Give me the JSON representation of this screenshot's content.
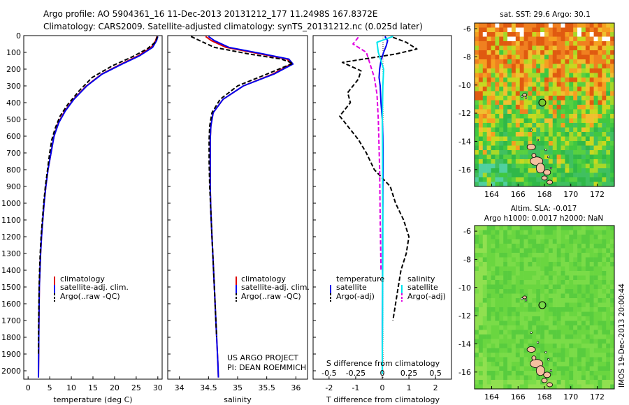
{
  "header": {
    "line1": "Argo profile: AO 5904361_16 11-Dec-2013 20131212_177 11.2498S 167.8372E",
    "line2": "Climatology: CARS2009. Satellite-adjusted climatology: synTS_20131212.nc (0.025d later)"
  },
  "colors": {
    "red": "#dd0000",
    "blue": "#0000ee",
    "black": "#000000",
    "cyan": "#00e5ee",
    "magenta": "#e000e0",
    "island": "#f5c0a0"
  },
  "chart_data": [
    {
      "id": "temperature",
      "type": "line",
      "xlabel": "temperature (deg C)",
      "ylabel": "",
      "xlim": [
        -1,
        31
      ],
      "ylim": [
        2050,
        0
      ],
      "y_reversed": true,
      "xticks": [
        "0",
        "5",
        "10",
        "15",
        "20",
        "25",
        "30"
      ],
      "yticks": [
        "0",
        "100",
        "200",
        "300",
        "400",
        "500",
        "600",
        "700",
        "800",
        "900",
        "1000",
        "1100",
        "1200",
        "1300",
        "1400",
        "1500",
        "1600",
        "1700",
        "1800",
        "1900",
        "2000"
      ],
      "legend": [
        "climatology",
        "satellite-adj. clim.",
        "Argo(..raw -QC)"
      ],
      "series": [
        {
          "name": "climatology",
          "color": "red",
          "dash": false,
          "x": [
            29.8,
            29.5,
            28.5,
            25.5,
            21.5,
            17.0,
            13.5,
            10.5,
            8.5,
            7.0,
            6.0,
            5.3,
            4.6,
            4.1,
            3.7,
            3.4,
            3.1,
            2.9,
            2.75,
            2.6,
            2.5,
            2.45,
            2.4
          ],
          "y": [
            5,
            30,
            70,
            120,
            170,
            230,
            300,
            380,
            450,
            520,
            600,
            700,
            800,
            900,
            1000,
            1100,
            1200,
            1300,
            1400,
            1500,
            1700,
            1900,
            2040
          ]
        },
        {
          "name": "satellite-adj. clim.",
          "color": "blue",
          "dash": false,
          "x": [
            30.0,
            29.7,
            28.8,
            25.8,
            21.7,
            17.1,
            13.6,
            10.6,
            8.6,
            7.1,
            6.0,
            5.3,
            4.6,
            4.1,
            3.7,
            3.4,
            3.1,
            2.9,
            2.75,
            2.6,
            2.5,
            2.45,
            2.4
          ],
          "y": [
            5,
            30,
            70,
            120,
            170,
            230,
            300,
            380,
            450,
            520,
            600,
            700,
            800,
            900,
            1000,
            1100,
            1200,
            1300,
            1400,
            1500,
            1700,
            1900,
            2040
          ]
        },
        {
          "name": "Argo(..raw -QC)",
          "color": "black",
          "dash": true,
          "x": [
            29.9,
            29.4,
            27.5,
            23.8,
            19.5,
            14.8,
            11.8,
            9.2,
            7.4,
            6.3,
            5.5,
            5.0,
            4.5,
            4.0,
            3.6,
            3.3,
            3.0,
            2.8,
            2.65,
            2.55,
            2.45,
            2.4
          ],
          "y": [
            5,
            40,
            80,
            130,
            180,
            250,
            330,
            410,
            480,
            550,
            620,
            700,
            800,
            900,
            1000,
            1100,
            1200,
            1300,
            1400,
            1500,
            1700,
            1900
          ]
        }
      ]
    },
    {
      "id": "salinity",
      "type": "line",
      "xlabel": "salinity",
      "ylabel": "",
      "xlim": [
        33.8,
        36.2
      ],
      "ylim": [
        2050,
        0
      ],
      "y_reversed": true,
      "xticks": [
        "34",
        "34.5",
        "35",
        "35.5",
        "36"
      ],
      "legend": [
        "climatology",
        "satellite-adj. clim.",
        "Argo(..raw -QC)"
      ],
      "annotation": [
        "US ARGO PROJECT",
        "PI: DEAN ROEMMICH"
      ],
      "series": [
        {
          "name": "climatology",
          "color": "red",
          "dash": false,
          "x": [
            34.45,
            34.55,
            34.8,
            35.4,
            35.85,
            35.92,
            35.6,
            35.1,
            34.75,
            34.58,
            34.54,
            34.53,
            34.53,
            34.53,
            34.54,
            34.56,
            34.58,
            34.6,
            34.62,
            34.64,
            34.66,
            34.67
          ],
          "y": [
            5,
            30,
            70,
            110,
            140,
            170,
            230,
            300,
            380,
            460,
            540,
            620,
            750,
            900,
            1050,
            1200,
            1350,
            1500,
            1650,
            1800,
            1950,
            2040
          ]
        },
        {
          "name": "satellite-adj. clim.",
          "color": "blue",
          "dash": false,
          "x": [
            34.5,
            34.6,
            34.85,
            35.45,
            35.88,
            35.95,
            35.62,
            35.1,
            34.75,
            34.58,
            34.54,
            34.53,
            34.53,
            34.53,
            34.54,
            34.56,
            34.58,
            34.6,
            34.62,
            34.64,
            34.66,
            34.67
          ],
          "y": [
            5,
            30,
            70,
            110,
            140,
            170,
            230,
            300,
            380,
            460,
            540,
            620,
            750,
            900,
            1050,
            1200,
            1350,
            1500,
            1650,
            1800,
            1950,
            2040
          ]
        },
        {
          "name": "Argo(..raw -QC)",
          "color": "black",
          "dash": true,
          "x": [
            34.2,
            34.35,
            34.6,
            35.2,
            35.75,
            35.95,
            35.5,
            35.0,
            34.7,
            34.56,
            34.52,
            34.51,
            34.51,
            34.52,
            34.54,
            34.56,
            34.58,
            34.6,
            34.62,
            34.64
          ],
          "y": [
            5,
            30,
            70,
            110,
            140,
            165,
            230,
            300,
            380,
            460,
            540,
            620,
            750,
            900,
            1050,
            1200,
            1350,
            1500,
            1650,
            1800
          ]
        }
      ]
    },
    {
      "id": "differences",
      "type": "line",
      "xlabel": "T difference from climatology",
      "xlabel_top": "S difference from climatology",
      "xlim": [
        -2.6,
        2.6
      ],
      "ylim": [
        2050,
        0
      ],
      "y_reversed": true,
      "xticks": [
        "-2",
        "-1",
        "0",
        "1",
        "2"
      ],
      "xticks_secondary": [
        "-0.5",
        "-0.25",
        "0",
        "0.25",
        "0.5"
      ],
      "legend_headers": [
        "temperature",
        "salinity"
      ],
      "legend": [
        "satellite",
        "Argo(-adj)",
        "satellite",
        "Argo(-adj)"
      ],
      "series": [
        {
          "name": "T satellite",
          "color": "blue",
          "dash": false,
          "x": [
            0.1,
            0.2,
            0.15,
            0.05,
            -0.05,
            -0.1,
            -0.12,
            -0.08,
            -0.05,
            0.0,
            0.02,
            0.03,
            0.03,
            0.02,
            0.02,
            0.01,
            0.01,
            0.0,
            0.0
          ],
          "y": [
            5,
            30,
            60,
            100,
            150,
            200,
            250,
            300,
            400,
            500,
            600,
            700,
            800,
            900,
            1000,
            1200,
            1500,
            1800,
            2000
          ]
        },
        {
          "name": "T Argo(-adj)",
          "color": "black",
          "dash": true,
          "x": [
            0.4,
            0.9,
            1.3,
            0.5,
            -1.5,
            -0.8,
            -0.9,
            -1.3,
            -1.2,
            -1.6,
            -1.2,
            -0.9,
            -0.6,
            -0.3,
            0.3,
            0.5,
            0.8,
            1.0,
            0.9,
            0.7,
            0.6,
            0.5,
            0.4
          ],
          "y": [
            10,
            40,
            80,
            110,
            160,
            210,
            260,
            340,
            400,
            480,
            560,
            620,
            700,
            800,
            900,
            1000,
            1100,
            1200,
            1300,
            1400,
            1500,
            1600,
            1700
          ]
        },
        {
          "name": "S satellite",
          "color": "cyan",
          "dash": false,
          "x": [
            0.4,
            -0.2,
            -0.15,
            0.05,
            0.02,
            0.0,
            0.01,
            0.01,
            0.02,
            0.02,
            0.01,
            0.01,
            0.0,
            0.0
          ],
          "y": [
            5,
            40,
            100,
            200,
            300,
            500,
            700,
            900,
            1100,
            1300,
            1500,
            1700,
            1900,
            2020
          ]
        },
        {
          "name": "S Argo(-adj)",
          "color": "magenta",
          "dash": true,
          "x": [
            -0.9,
            -1.1,
            -0.6,
            -0.5,
            -0.3,
            -0.2,
            -0.15,
            -0.1,
            -0.08,
            -0.05
          ],
          "y": [
            10,
            50,
            100,
            150,
            250,
            350,
            500,
            800,
            1100,
            1400
          ]
        }
      ]
    },
    {
      "id": "sst_map",
      "type": "heatmap",
      "title": "sat. SST: 29.6 Argo: 30.1",
      "xlim": [
        162.7,
        173.3
      ],
      "ylim": [
        -17.2,
        -5.6
      ],
      "xticks": [
        "164",
        "166",
        "168",
        "170",
        "172"
      ],
      "yticks": [
        "-6",
        "-8",
        "-10",
        "-12",
        "-14",
        "-16"
      ],
      "argo_position": {
        "lon": 167.84,
        "lat": -11.25
      }
    },
    {
      "id": "sla_map",
      "type": "heatmap",
      "title": "Altim. SLA: -0.017",
      "subtitle": "Argo h1000: 0.0017 h2000: NaN",
      "xlim": [
        162.7,
        173.3
      ],
      "ylim": [
        -17.2,
        -5.6
      ],
      "xticks": [
        "164",
        "166",
        "168",
        "170",
        "172"
      ],
      "yticks": [
        "-6",
        "-8",
        "-10",
        "-12",
        "-14",
        "-16"
      ],
      "argo_position": {
        "lon": 167.84,
        "lat": -11.25
      }
    }
  ],
  "footer": {
    "timestamp": "IMOS 19-Dec-2013 20:00:44"
  }
}
